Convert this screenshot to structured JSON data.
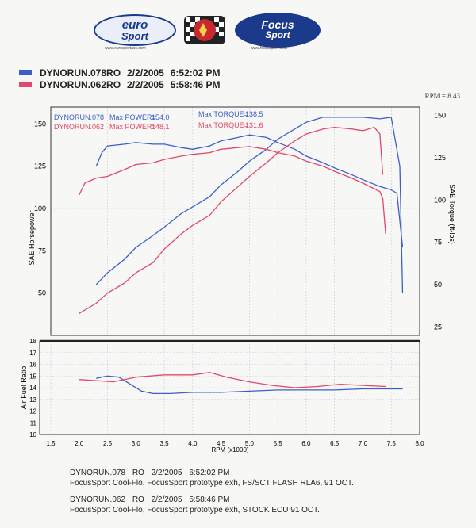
{
  "logos": {
    "eurosport_line1": "euro",
    "eurosport_line2": "Sport",
    "eurosport_url": "www.eurosportacc.com",
    "focus_line1": "Focus",
    "focus_line2": "Sport",
    "focus_url": "www.focussport.com"
  },
  "legend": [
    {
      "name": "DYNORUN.078RO",
      "date": "2/2/2005",
      "time": "6:52:02 PM",
      "color": "#3b5fc6"
    },
    {
      "name": "DYNORUN.062RO",
      "date": "2/2/2005",
      "time": "5:58:46 PM",
      "color": "#e24867"
    }
  ],
  "rpm_tag": "RPM = 8.43",
  "chart_data": {
    "type": "line",
    "colors": {
      "run078": "#3b5fc6",
      "run062": "#e24867"
    },
    "stats": [
      {
        "run": "DYNORUN.078",
        "power_label": "Max POWER=",
        "power": "154.0",
        "torque_label": "Max TORQUE=",
        "torque": "138.5"
      },
      {
        "run": "DYNORUN.062",
        "power_label": "Max POWER=",
        "power": "148.1",
        "torque_label": "Max TORQUE=",
        "torque": "131.6"
      }
    ],
    "xlabel": "RPM (x1000)",
    "xlim": [
      1.5,
      8.0
    ],
    "xticks": [
      "1.5",
      "2.0",
      "2.5",
      "3.0",
      "3.5",
      "4.0",
      "4.5",
      "5.0",
      "5.5",
      "6.0",
      "6.5",
      "7.0",
      "7.5",
      "8.0"
    ],
    "top": {
      "ylabel_left": "SAE Horsepower",
      "ylabel_right": "SAE Torque (ft-lbs)",
      "hp_ylim": [
        25,
        160
      ],
      "hp_ticks": [
        "50",
        "75",
        "100",
        "125",
        "150"
      ],
      "tq_ylim": [
        20,
        155
      ],
      "tq_ticks": [
        "25",
        "50",
        "75",
        "100",
        "125",
        "150"
      ],
      "series": [
        {
          "name": "DYNORUN.078 Power",
          "run": "run078",
          "axis": "hp",
          "x": [
            2.3,
            2.5,
            2.8,
            3.0,
            3.3,
            3.5,
            3.8,
            4.0,
            4.3,
            4.5,
            4.8,
            5.0,
            5.3,
            5.5,
            5.8,
            6.0,
            6.3,
            6.5,
            6.8,
            7.0,
            7.3,
            7.5,
            7.65,
            7.7
          ],
          "y": [
            55,
            62,
            70,
            77,
            84,
            89,
            97,
            101,
            107,
            114,
            122,
            128,
            135,
            141,
            147,
            151,
            154,
            154,
            154,
            154,
            153,
            154,
            125,
            50
          ]
        },
        {
          "name": "DYNORUN.078 Torque",
          "run": "run078",
          "axis": "tq",
          "x": [
            2.3,
            2.4,
            2.5,
            2.8,
            3.0,
            3.3,
            3.5,
            3.8,
            4.0,
            4.3,
            4.5,
            4.8,
            5.0,
            5.3,
            5.5,
            5.8,
            6.0,
            6.3,
            6.5,
            6.8,
            7.0,
            7.3,
            7.5,
            7.6,
            7.7
          ],
          "y": [
            120,
            128,
            132,
            133,
            134,
            133,
            133,
            131,
            130,
            132,
            135,
            137,
            138.5,
            137,
            134,
            130,
            126,
            122,
            119,
            115,
            112,
            108,
            106,
            104,
            72
          ]
        },
        {
          "name": "DYNORUN.062 Power",
          "run": "run062",
          "axis": "hp",
          "x": [
            2.0,
            2.3,
            2.5,
            2.8,
            3.0,
            3.3,
            3.5,
            3.8,
            4.0,
            4.3,
            4.5,
            4.8,
            5.0,
            5.3,
            5.5,
            5.8,
            6.0,
            6.3,
            6.5,
            6.8,
            7.0,
            7.2,
            7.3,
            7.35
          ],
          "y": [
            38,
            44,
            50,
            56,
            62,
            68,
            76,
            85,
            90,
            96,
            104,
            113,
            119,
            127,
            133,
            140,
            144,
            147,
            148,
            147,
            146,
            148,
            144,
            120
          ]
        },
        {
          "name": "DYNORUN.062 Torque",
          "run": "run062",
          "axis": "tq",
          "x": [
            2.0,
            2.1,
            2.3,
            2.5,
            2.8,
            3.0,
            3.3,
            3.5,
            3.8,
            4.0,
            4.3,
            4.5,
            4.8,
            5.0,
            5.3,
            5.5,
            5.8,
            6.0,
            6.3,
            6.5,
            6.8,
            7.0,
            7.3,
            7.35,
            7.4
          ],
          "y": [
            103,
            110,
            113,
            114,
            118,
            121,
            122,
            124,
            126,
            127,
            128,
            130,
            131,
            131.6,
            130,
            128,
            126,
            123,
            120,
            117,
            113,
            110,
            105,
            101,
            80
          ]
        }
      ]
    },
    "bottom": {
      "ylabel": "Air Fuel Ratio",
      "ylim": [
        10,
        18
      ],
      "yticks": [
        "10",
        "11",
        "12",
        "13",
        "14",
        "15",
        "16",
        "17",
        "18"
      ],
      "series": [
        {
          "name": "DYNORUN.078 AFR",
          "run": "run078",
          "x": [
            2.3,
            2.5,
            2.7,
            2.9,
            3.1,
            3.3,
            3.6,
            4.0,
            4.5,
            5.0,
            5.5,
            6.0,
            6.5,
            7.0,
            7.5,
            7.7
          ],
          "y": [
            14.8,
            15.0,
            14.9,
            14.3,
            13.7,
            13.5,
            13.5,
            13.6,
            13.6,
            13.7,
            13.8,
            13.8,
            13.8,
            13.9,
            13.9,
            13.9
          ]
        },
        {
          "name": "DYNORUN.062 AFR",
          "run": "run062",
          "x": [
            2.0,
            2.3,
            2.6,
            3.0,
            3.5,
            4.0,
            4.3,
            4.6,
            5.0,
            5.4,
            5.8,
            6.2,
            6.6,
            7.0,
            7.4
          ],
          "y": [
            14.7,
            14.6,
            14.5,
            14.9,
            15.1,
            15.1,
            15.3,
            14.9,
            14.5,
            14.2,
            14.0,
            14.1,
            14.3,
            14.2,
            14.1
          ]
        }
      ]
    }
  },
  "notes": [
    {
      "run": "DYNORUN.078",
      "code": "RO",
      "date": "2/2/2005",
      "time": "6:52:02 PM",
      "desc": "FocusSport Cool-Flo, FocusSport prototype exh, FS/SCT FLASH RLA6, 91 OCT."
    },
    {
      "run": "DYNORUN.062",
      "code": "RO",
      "date": "2/2/2005",
      "time": "5:58:46 PM",
      "desc": "FocusSport Cool-Flo, FocusSport prototype exh, STOCK ECU 91 OCT."
    }
  ]
}
